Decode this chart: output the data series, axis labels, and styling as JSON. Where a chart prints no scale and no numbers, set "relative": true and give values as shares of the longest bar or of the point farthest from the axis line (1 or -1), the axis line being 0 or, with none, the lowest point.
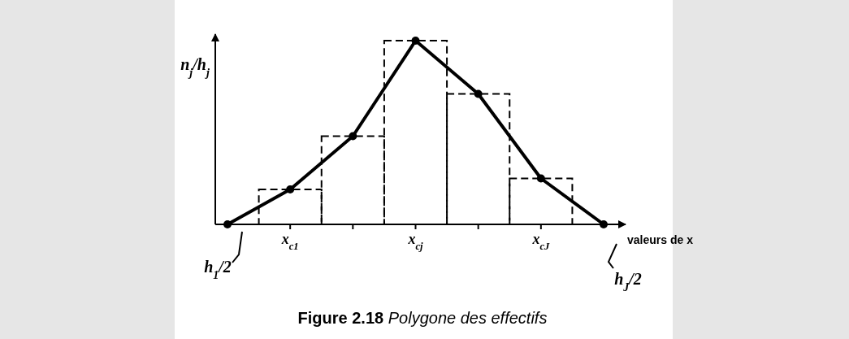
{
  "chart_data": {
    "type": "bar",
    "relative": true,
    "title": "Figure 2.18",
    "subtitle": "Polygone des effectifs",
    "xlabel": "valeurs de x",
    "ylabel": "n$_{j}$/h$_{j}$",
    "categories": [
      null,
      "x$_{c1}$",
      null,
      "x$_{cj}$",
      null,
      "x$_{cJ}$",
      null
    ],
    "series": [
      {
        "color": "#000000",
        "line_style": "dashed",
        "values": [
          null,
          0.19,
          0.48,
          1,
          0.71,
          0.25,
          null
        ]
      },
      {
        "type": "line",
        "color": "#000000",
        "marker": "circle",
        "line_style": "solid",
        "values": [
          0,
          0.19,
          0.48,
          1,
          0.71,
          0.25,
          0
        ]
      }
    ],
    "annotations": [
      "h$_{1}$/2",
      "h$_{J}$/2"
    ],
    "grid": false
  }
}
